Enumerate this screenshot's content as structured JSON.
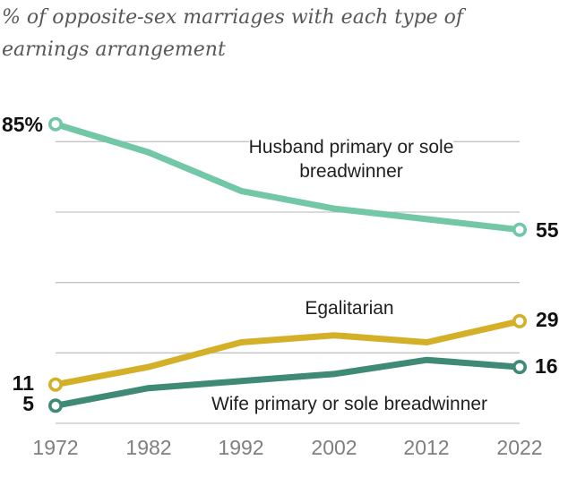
{
  "title": "% of opposite-sex marriages with each type of earnings arrangement",
  "colors": {
    "background": "#ffffff",
    "grid": "#c3c3c3",
    "title_text": "#58585a",
    "label_text": "#1f1f1f",
    "axis_text": "#7f7f7f",
    "husband_line": "#72c7a7",
    "egalitarian_line": "#d4b028",
    "wife_line": "#3e8a74"
  },
  "chart_data": {
    "type": "line",
    "title": "% of opposite-sex marriages with each type of earnings arrangement",
    "x": [
      "1972",
      "1982",
      "1992",
      "2002",
      "2012",
      "2022"
    ],
    "xlabel": "",
    "ylabel": "",
    "ylim": [
      0,
      90
    ],
    "grid": true,
    "grid_values": [
      80,
      60,
      40,
      20,
      0
    ],
    "legend_position": "inline-annotations",
    "series": [
      {
        "name": "Husband primary or sole breadwinner",
        "color": "#72c7a7",
        "values": [
          85,
          77,
          66,
          61,
          58,
          55
        ],
        "start_label": "85%",
        "end_label": "55"
      },
      {
        "name": "Egalitarian",
        "color": "#d4b028",
        "values": [
          11,
          16,
          23,
          25,
          23,
          29
        ],
        "start_label": "11",
        "end_label": "29"
      },
      {
        "name": "Wife primary or sole breadwinner",
        "color": "#3e8a74",
        "values": [
          5,
          10,
          12,
          14,
          18,
          16
        ],
        "start_label": "5",
        "end_label": "16"
      }
    ]
  }
}
